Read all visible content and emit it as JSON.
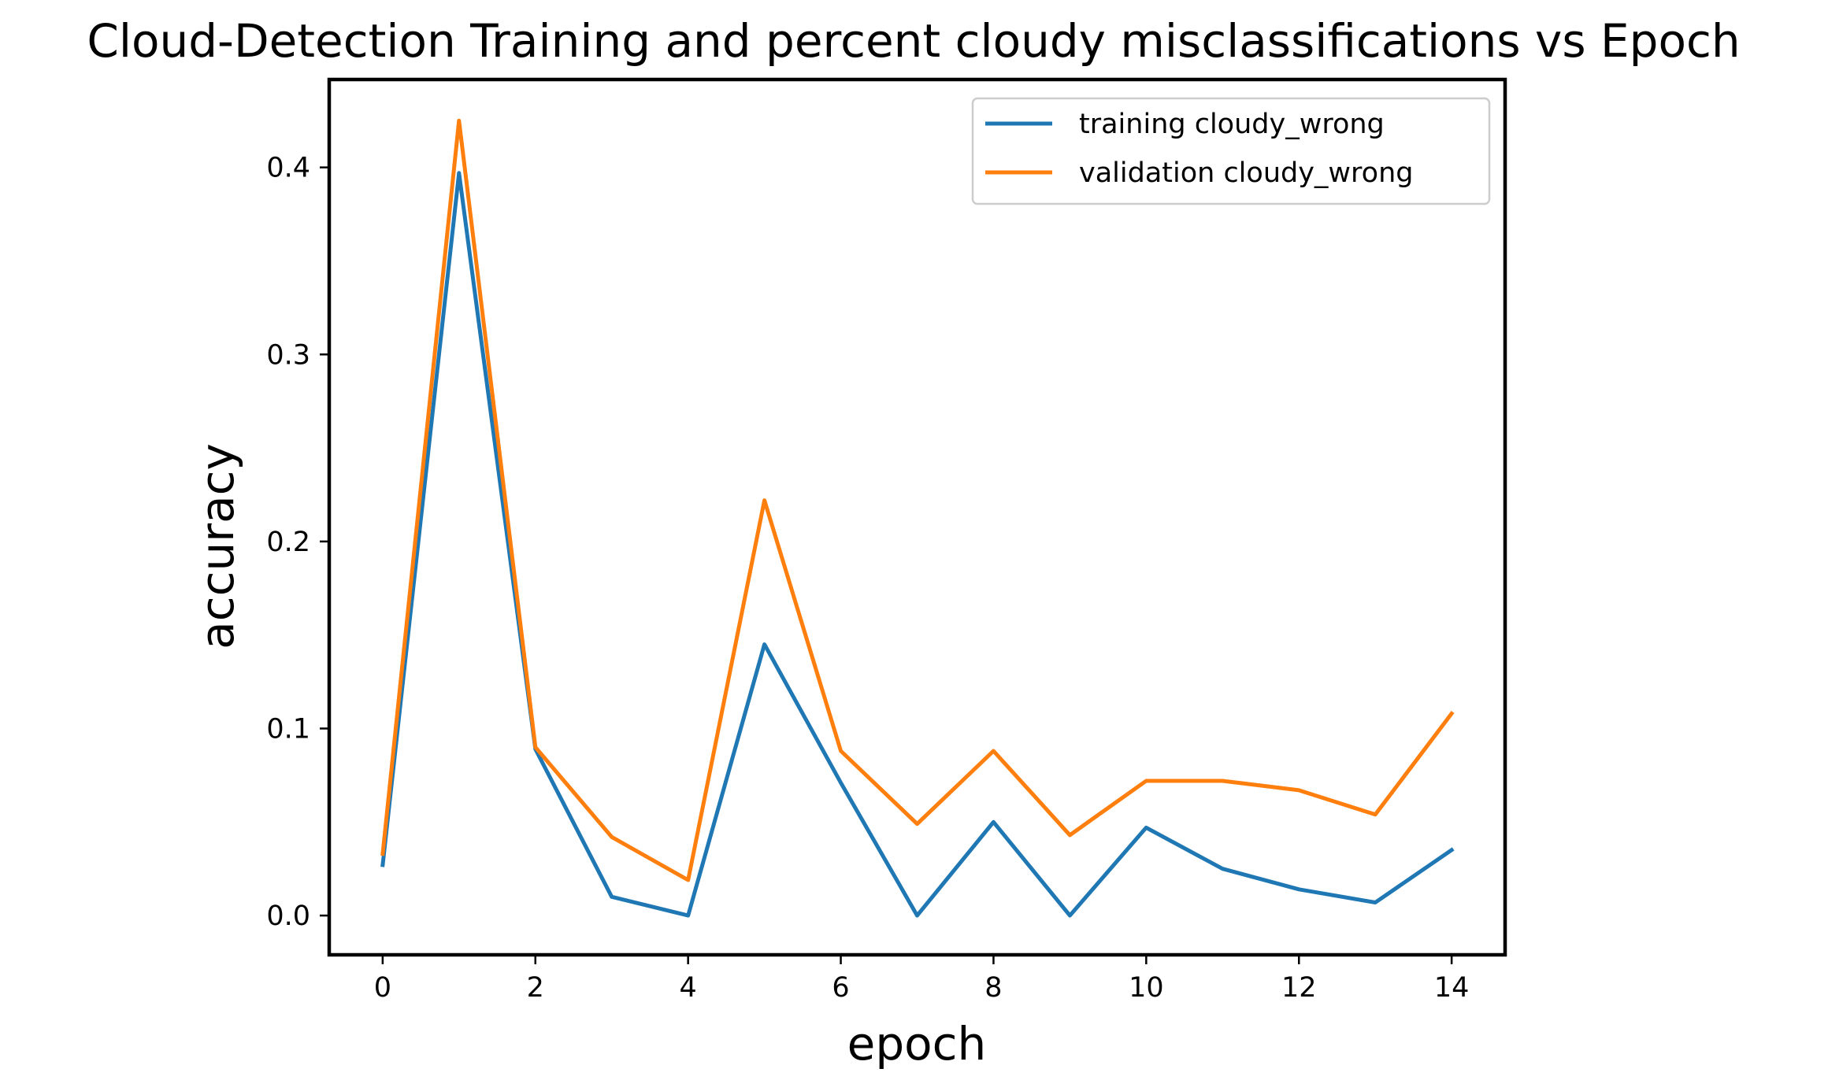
{
  "chart_data": {
    "type": "line",
    "title": "Cloud-Detection Training and percent cloudy misclassifications vs Epoch",
    "xlabel": "epoch",
    "ylabel": "accuracy",
    "x": [
      0,
      1,
      2,
      3,
      4,
      5,
      6,
      7,
      8,
      9,
      10,
      11,
      12,
      13,
      14
    ],
    "xlim": [
      -0.7,
      14.7
    ],
    "ylim": [
      -0.021,
      0.447
    ],
    "xticks": [
      0,
      2,
      4,
      6,
      8,
      10,
      12,
      14
    ],
    "xtick_labels": [
      "0",
      "2",
      "4",
      "6",
      "8",
      "10",
      "12",
      "14"
    ],
    "yticks": [
      0.0,
      0.1,
      0.2,
      0.3,
      0.4
    ],
    "ytick_labels": [
      "0.0",
      "0.1",
      "0.2",
      "0.3",
      "0.4"
    ],
    "grid": false,
    "legend_position": "top-right",
    "series": [
      {
        "name": "training cloudy_wrong",
        "color": "#1f77b4",
        "values": [
          0.027,
          0.397,
          0.089,
          0.01,
          0.0,
          0.145,
          0.071,
          0.0,
          0.05,
          0.0,
          0.047,
          0.025,
          0.014,
          0.007,
          0.035
        ]
      },
      {
        "name": "validation cloudy_wrong",
        "color": "#ff7f0e",
        "values": [
          0.033,
          0.425,
          0.09,
          0.042,
          0.019,
          0.222,
          0.088,
          0.049,
          0.088,
          0.043,
          0.072,
          0.072,
          0.067,
          0.054,
          0.108
        ]
      }
    ]
  }
}
